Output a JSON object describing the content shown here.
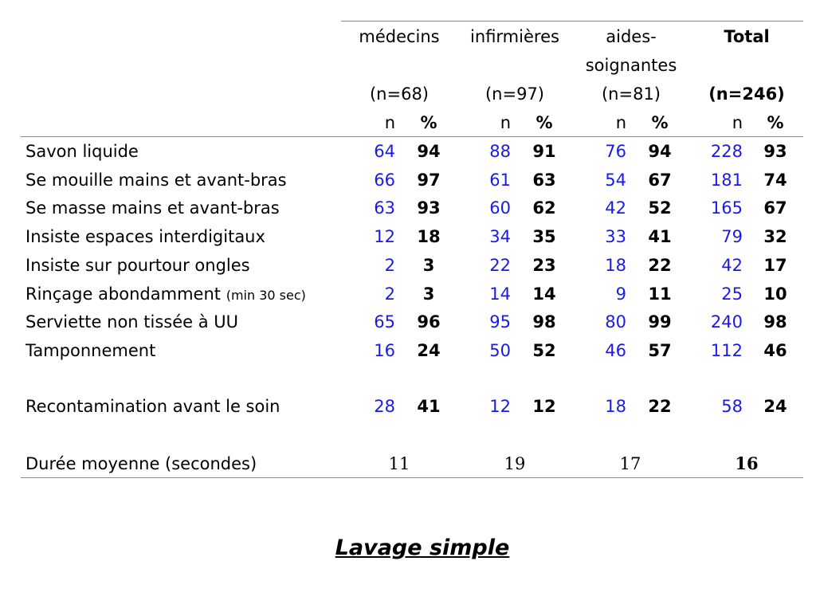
{
  "colors": {
    "n_values": "#1a1ae6",
    "percent_values": "#000000",
    "rule": "#8a8a8a"
  },
  "table": {
    "groups": [
      {
        "name_line1": "médecins",
        "name_line2": "",
        "count": "(n=68)"
      },
      {
        "name_line1": "infirmières",
        "name_line2": "",
        "count": "(n=97)"
      },
      {
        "name_line1": "aides-",
        "name_line2": "soignantes",
        "count": "(n=81)"
      },
      {
        "name_line1": "Total",
        "name_line2": "",
        "count": "(n=246)"
      }
    ],
    "subheaders": {
      "n": "n",
      "pct": "%"
    },
    "rows": [
      {
        "label": "Savon liquide",
        "note": "",
        "values": [
          [
            "64",
            "94"
          ],
          [
            "88",
            "91"
          ],
          [
            "76",
            "94"
          ],
          [
            "228",
            "93"
          ]
        ]
      },
      {
        "label": "Se mouille mains et avant-bras",
        "note": "",
        "values": [
          [
            "66",
            "97"
          ],
          [
            "61",
            "63"
          ],
          [
            "54",
            "67"
          ],
          [
            "181",
            "74"
          ]
        ]
      },
      {
        "label": "Se masse mains et avant-bras",
        "note": "",
        "values": [
          [
            "63",
            "93"
          ],
          [
            "60",
            "62"
          ],
          [
            "42",
            "52"
          ],
          [
            "165",
            "67"
          ]
        ]
      },
      {
        "label": "Insiste espaces interdigitaux",
        "note": "",
        "values": [
          [
            "12",
            "18"
          ],
          [
            "34",
            "35"
          ],
          [
            "33",
            "41"
          ],
          [
            "79",
            "32"
          ]
        ]
      },
      {
        "label": "Insiste sur pourtour ongles",
        "note": "",
        "values": [
          [
            "2",
            "3"
          ],
          [
            "22",
            "23"
          ],
          [
            "18",
            "22"
          ],
          [
            "42",
            "17"
          ]
        ]
      },
      {
        "label": "Rinçage abondamment",
        "note": "(min 30 sec)",
        "values": [
          [
            "2",
            "3"
          ],
          [
            "14",
            "14"
          ],
          [
            "9",
            "11"
          ],
          [
            "25",
            "10"
          ]
        ]
      },
      {
        "label": "Serviette non tissée à UU",
        "note": "",
        "values": [
          [
            "65",
            "96"
          ],
          [
            "95",
            "98"
          ],
          [
            "80",
            "99"
          ],
          [
            "240",
            "98"
          ]
        ]
      },
      {
        "label": "Tamponnement",
        "note": "",
        "values": [
          [
            "16",
            "24"
          ],
          [
            "50",
            "52"
          ],
          [
            "46",
            "57"
          ],
          [
            "112",
            "46"
          ]
        ]
      }
    ],
    "recontamination": {
      "label": "Recontamination avant le soin",
      "values": [
        [
          "28",
          "41"
        ],
        [
          "12",
          "12"
        ],
        [
          "18",
          "22"
        ],
        [
          "58",
          "24"
        ]
      ]
    },
    "duration": {
      "label": "Durée moyenne (secondes)",
      "values": [
        "11",
        "19",
        "17",
        "16"
      ]
    }
  },
  "caption": "Lavage simple"
}
